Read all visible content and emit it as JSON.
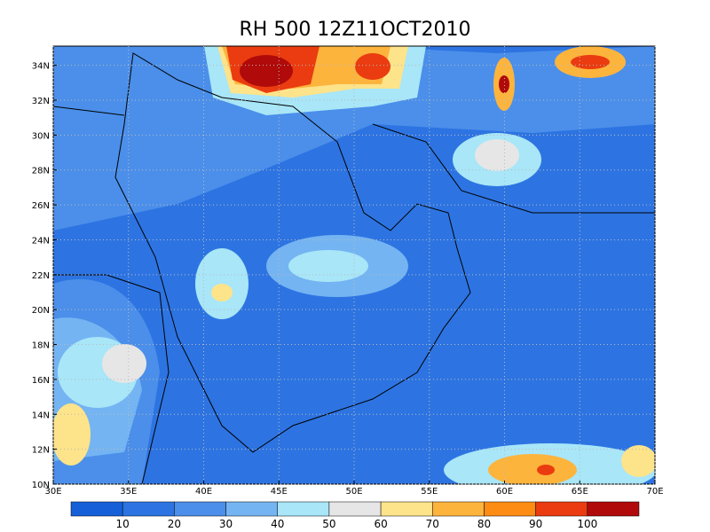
{
  "title": "RH 500 12Z11OCT2010",
  "map": {
    "xlim": [
      30,
      70
    ],
    "ylim": [
      10,
      35.1
    ],
    "xticks": [
      {
        "value": 30,
        "label": "30E"
      },
      {
        "value": 35,
        "label": "35E"
      },
      {
        "value": 40,
        "label": "40E"
      },
      {
        "value": 45,
        "label": "45E"
      },
      {
        "value": 50,
        "label": "50E"
      },
      {
        "value": 55,
        "label": "55E"
      },
      {
        "value": 60,
        "label": "60E"
      },
      {
        "value": 65,
        "label": "65E"
      },
      {
        "value": 70,
        "label": "70E"
      }
    ],
    "yticks": [
      {
        "value": 10,
        "label": "10N"
      },
      {
        "value": 12,
        "label": "12N"
      },
      {
        "value": 14,
        "label": "14N"
      },
      {
        "value": 16,
        "label": "16N"
      },
      {
        "value": 18,
        "label": "18N"
      },
      {
        "value": 20,
        "label": "20N"
      },
      {
        "value": 22,
        "label": "22N"
      },
      {
        "value": 24,
        "label": "24N"
      },
      {
        "value": 26,
        "label": "26N"
      },
      {
        "value": 28,
        "label": "28N"
      },
      {
        "value": 30,
        "label": "30N"
      },
      {
        "value": 32,
        "label": "32N"
      },
      {
        "value": 34,
        "label": "34N"
      }
    ],
    "grid": true
  },
  "colorbar": {
    "colors": [
      "#1560d8",
      "#2d74e2",
      "#4b8fea",
      "#74b4f2",
      "#a8e6f8",
      "#e6e6e6",
      "#fde38a",
      "#fdb43c",
      "#fd8c14",
      "#ea3c10",
      "#b00a0a"
    ],
    "labels": [
      10,
      20,
      30,
      40,
      50,
      60,
      70,
      80,
      90,
      100
    ]
  }
}
